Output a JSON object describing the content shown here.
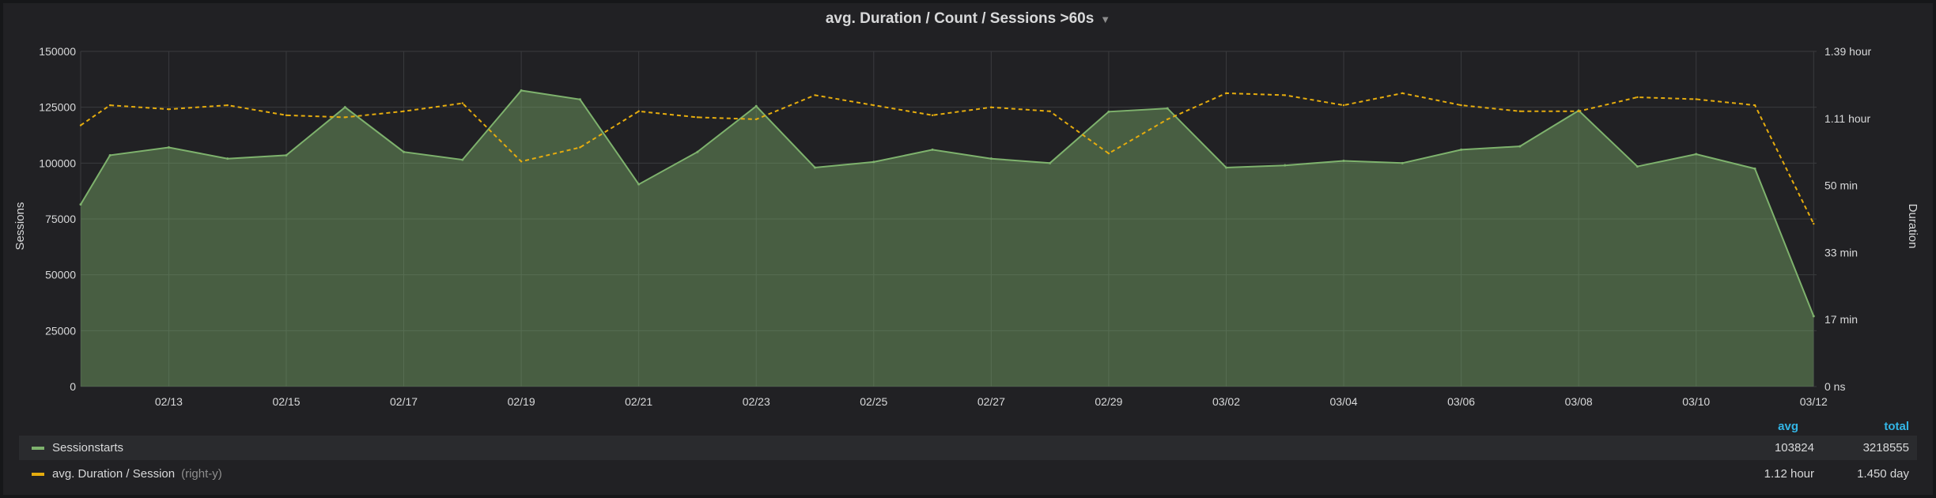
{
  "panel": {
    "title": "avg. Duration / Count / Sessions >60s"
  },
  "chart_data": {
    "type": "area",
    "y_left": {
      "label": "Sessions",
      "ticks": [
        "0",
        "25000",
        "50000",
        "75000",
        "100000",
        "125000",
        "150000"
      ],
      "range": [
        0,
        150000
      ]
    },
    "y_right": {
      "label": "Duration",
      "ticks": [
        "0 ns",
        "17 min",
        "33 min",
        "50 min",
        "1.11 hour",
        "1.39 hour"
      ],
      "range_minutes": [
        0,
        83.4
      ]
    },
    "x": {
      "ticks": [
        "02/13",
        "02/15",
        "02/17",
        "02/19",
        "02/21",
        "02/23",
        "02/25",
        "02/27",
        "02/29",
        "03/02",
        "03/04",
        "03/06",
        "03/08",
        "03/10",
        "03/12"
      ],
      "tick_days": [
        1,
        3,
        5,
        7,
        9,
        11,
        13,
        15,
        17,
        19,
        21,
        23,
        25,
        27,
        29
      ],
      "range_days": [
        -0.5,
        29.05
      ]
    },
    "series": [
      {
        "name": "Sessionstarts",
        "color": "#7eb26d",
        "axis": "left",
        "style": "area",
        "days": [
          -0.5,
          0,
          1,
          2,
          3,
          4,
          5,
          6,
          7,
          8,
          9,
          10,
          11,
          12,
          13,
          14,
          15,
          16,
          17,
          18,
          19,
          20,
          21,
          22,
          23,
          24,
          25,
          26,
          27,
          28,
          29
        ],
        "values": [
          81500,
          103500,
          107000,
          102000,
          103500,
          125000,
          105000,
          101500,
          132500,
          128500,
          90500,
          105000,
          125500,
          98000,
          100500,
          106000,
          102000,
          100000,
          123000,
          124500,
          98000,
          99000,
          101000,
          100000,
          106000,
          107500,
          123500,
          98500,
          104000,
          97500,
          31500
        ]
      },
      {
        "name": "avg. Duration / Session",
        "note": "(right-y)",
        "color": "#e5ac0e",
        "axis": "right",
        "style": "dashed",
        "days": [
          -0.5,
          0,
          1,
          2,
          3,
          4,
          5,
          6,
          7,
          8,
          9,
          10,
          11,
          12,
          13,
          14,
          15,
          16,
          17,
          18,
          19,
          20,
          21,
          22,
          23,
          24,
          25,
          26,
          27,
          28,
          29
        ],
        "values_minutes": [
          65,
          70,
          69,
          70,
          67.5,
          67,
          68.5,
          70.5,
          56,
          59.5,
          68.5,
          67,
          66.5,
          72.5,
          70,
          67.5,
          69.5,
          68.5,
          58,
          66.5,
          73,
          72.5,
          70,
          73,
          70,
          68.5,
          68.5,
          72,
          71.5,
          70,
          40.5
        ]
      }
    ],
    "legend": {
      "columns": [
        "avg",
        "total"
      ],
      "rows": [
        {
          "name": "Sessionstarts",
          "note": "",
          "avg": "103824",
          "total": "3218555"
        },
        {
          "name": "avg. Duration / Session",
          "note": "(right-y)",
          "avg": "1.12 hour",
          "total": "1.450 day"
        }
      ]
    }
  }
}
